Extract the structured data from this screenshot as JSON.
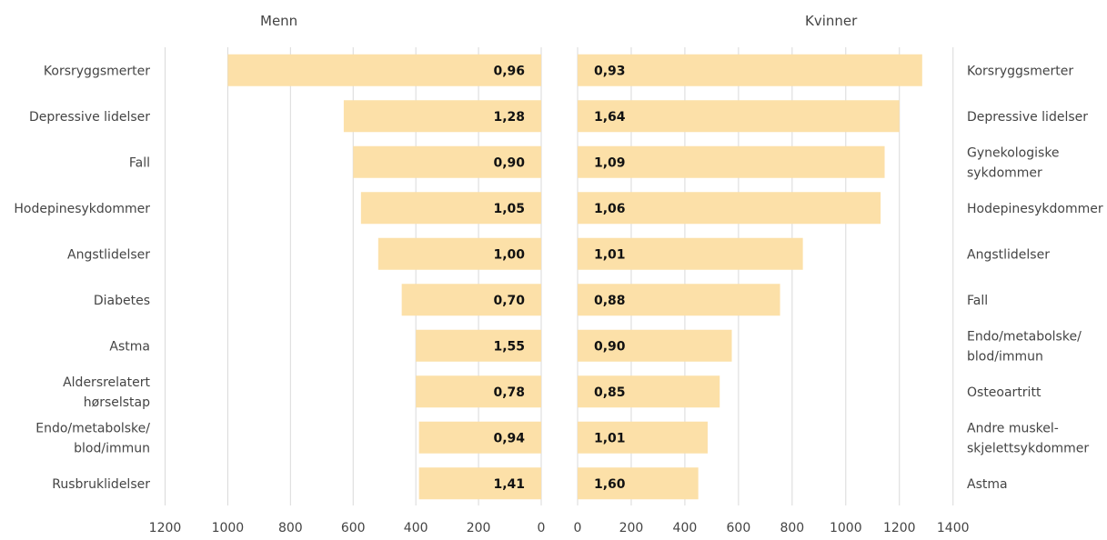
{
  "chart_data": [
    {
      "type": "bar",
      "orientation": "horizontal",
      "direction": "reversed",
      "title": "Menn",
      "categories": [
        "Korsryggsmerter",
        "Depressive lidelser",
        "Fall",
        "Hodepinesykdommer",
        "Angstlidelser",
        "Diabetes",
        "Astma",
        "Aldersrelatert hørselstap",
        "Endo/metabolske/ blod/immun",
        "Rusbruklidelser"
      ],
      "values": [
        1000,
        630,
        600,
        575,
        520,
        445,
        400,
        400,
        390,
        390
      ],
      "data_labels": [
        "0,96",
        "1,28",
        "0,90",
        "1,05",
        "1,00",
        "0,70",
        "1,55",
        "0,78",
        "0,94",
        "1,41"
      ],
      "xlim": [
        0,
        1200
      ],
      "ticks": [
        "0",
        "200",
        "400",
        "600",
        "800",
        "1000",
        "1200"
      ],
      "grid": true,
      "legend": "none",
      "color": "#FCE0A8"
    },
    {
      "type": "bar",
      "orientation": "horizontal",
      "title": "Kvinner",
      "categories": [
        "Korsryggsmerter",
        "Depressive lidelser",
        "Gynekologiske sykdommer",
        "Hodepinesykdommer",
        "Angstlidelser",
        "Fall",
        "Endo/metabolske/ blod/immun",
        "Osteoartritt",
        "Andre muskel- skjelettsykdommer",
        "Astma"
      ],
      "values": [
        1285,
        1200,
        1145,
        1130,
        840,
        755,
        575,
        530,
        485,
        450
      ],
      "data_labels": [
        "0,93",
        "1,64",
        "1,09",
        "1,06",
        "1,01",
        "0,88",
        "0,90",
        "0,85",
        "1,01",
        "1,60"
      ],
      "xlim": [
        0,
        1400
      ],
      "ticks": [
        "0",
        "200",
        "400",
        "600",
        "800",
        "1000",
        "1200",
        "1400"
      ],
      "grid": true,
      "legend": "none",
      "color": "#FCE0A8"
    }
  ],
  "colors": {
    "bar": "#FCE0A8",
    "grid": "#d9d9d9",
    "text": "#444444",
    "label": "#111111"
  }
}
